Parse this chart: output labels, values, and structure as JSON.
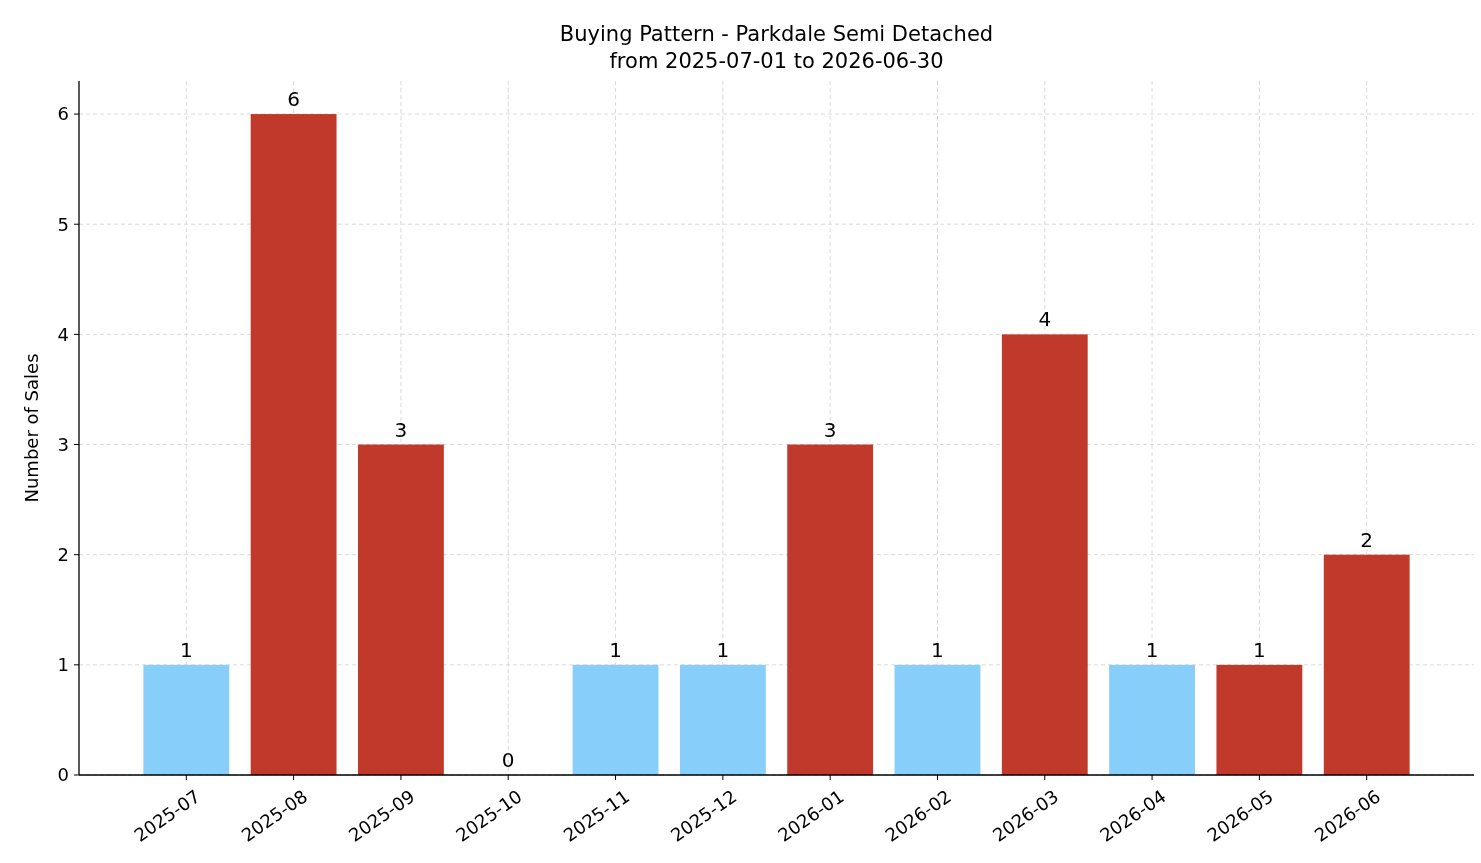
{
  "chart_data": {
    "type": "bar",
    "title": "Buying Pattern - Parkdale Semi Detached\nfrom 2025-07-01 to 2026-06-30",
    "ylabel": "Number of Sales",
    "categories": [
      "2025-07",
      "2025-08",
      "2025-09",
      "2025-10",
      "2025-11",
      "2025-12",
      "2026-01",
      "2026-02",
      "2026-03",
      "2026-04",
      "2026-05",
      "2026-06"
    ],
    "values": [
      1,
      6,
      3,
      0,
      1,
      1,
      3,
      1,
      4,
      1,
      1,
      2
    ],
    "colors": [
      "#87cefa",
      "#c0392b",
      "#c0392b",
      "#87cefa",
      "#87cefa",
      "#87cefa",
      "#c0392b",
      "#87cefa",
      "#c0392b",
      "#87cefa",
      "#c0392b",
      "#c0392b"
    ],
    "ylim": [
      0,
      6.3
    ],
    "yticks": [
      0,
      1,
      2,
      3,
      4,
      5,
      6
    ],
    "grid": true,
    "data_labels": true
  }
}
